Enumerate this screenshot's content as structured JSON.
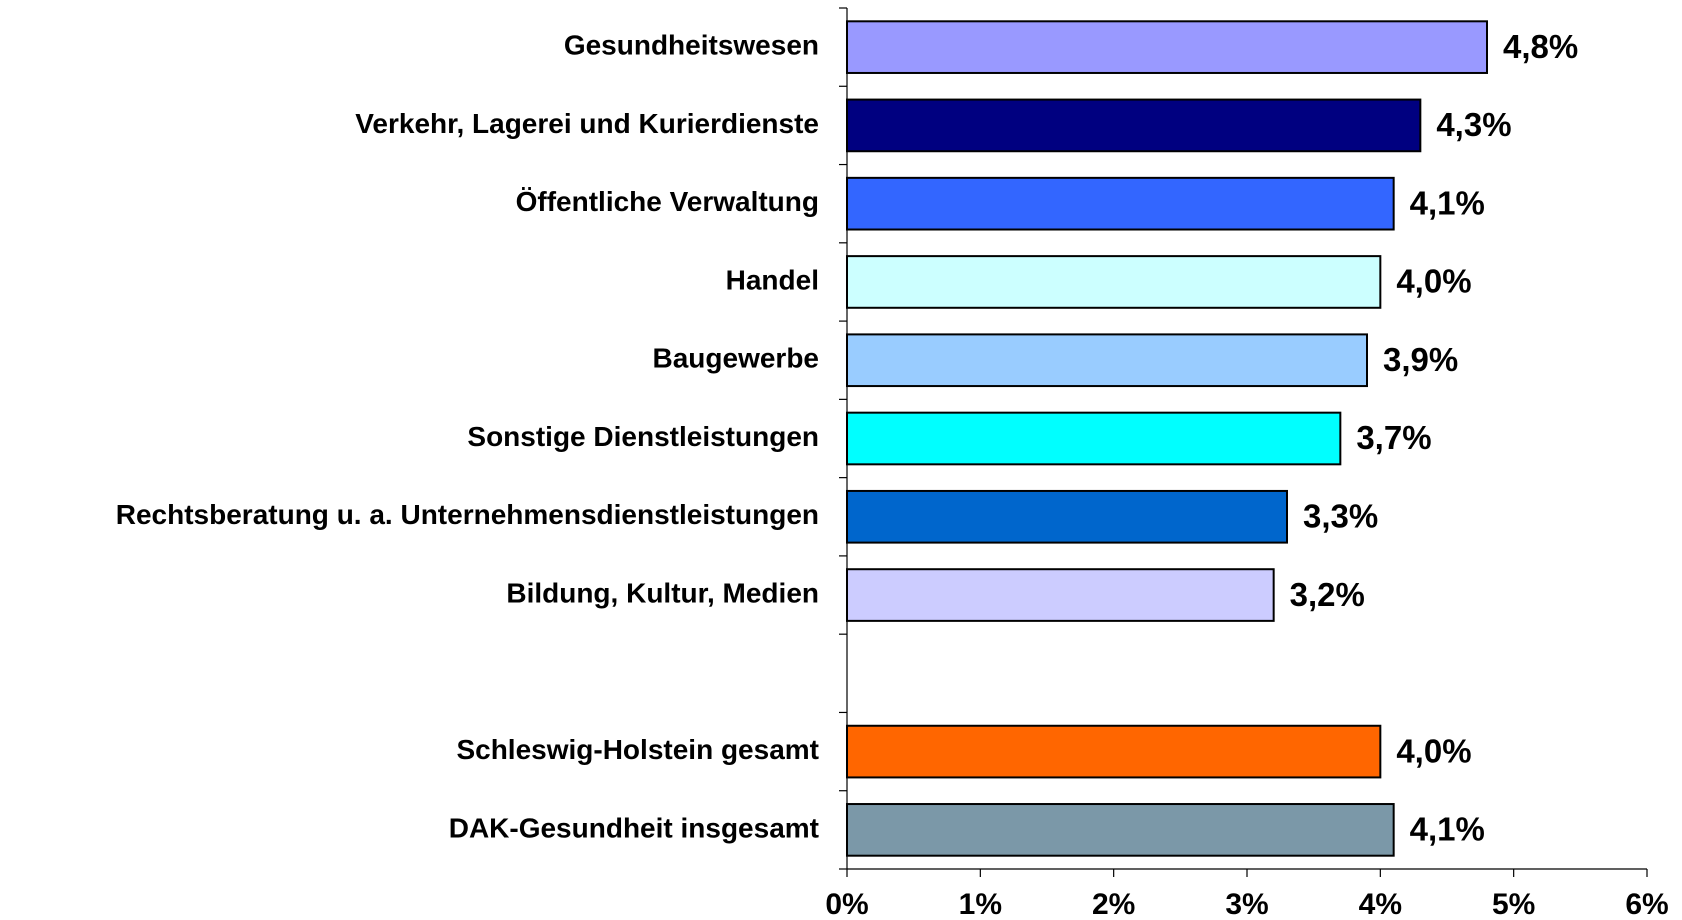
{
  "chart_data": {
    "type": "bar",
    "orientation": "horizontal",
    "categories": [
      "Gesundheitswesen",
      "Verkehr, Lagerei und Kurierdienste",
      "Öffentliche Verwaltung",
      "Handel",
      "Baugewerbe",
      "Sonstige Dienstleistungen",
      "Rechtsberatung u. a. Unternehmensdienstleistungen",
      "Bildung, Kultur, Medien",
      null,
      "Schleswig-Holstein gesamt",
      "DAK-Gesundheit insgesamt"
    ],
    "values": [
      4.8,
      4.3,
      4.1,
      4.0,
      3.9,
      3.7,
      3.3,
      3.2,
      null,
      4.0,
      4.1
    ],
    "value_labels": [
      "4,8%",
      "4,3%",
      "4,1%",
      "4,0%",
      "3,9%",
      "3,7%",
      "3,3%",
      "3,2%",
      null,
      "4,0%",
      "4,1%"
    ],
    "colors": [
      "#9999ff",
      "#000080",
      "#3366ff",
      "#ccffff",
      "#99ccff",
      "#00ffff",
      "#0066cc",
      "#ccccff",
      null,
      "#ff6600",
      "#7b98a8"
    ],
    "xlim": [
      0,
      6
    ],
    "xticks": [
      {
        "value": 0,
        "label": "0%"
      },
      {
        "value": 1,
        "label": "1%"
      },
      {
        "value": 2,
        "label": "2%"
      },
      {
        "value": 3,
        "label": "3%"
      },
      {
        "value": 4,
        "label": "4%"
      },
      {
        "value": 5,
        "label": "5%"
      },
      {
        "value": 6,
        "label": "6%"
      }
    ],
    "grid": false
  }
}
